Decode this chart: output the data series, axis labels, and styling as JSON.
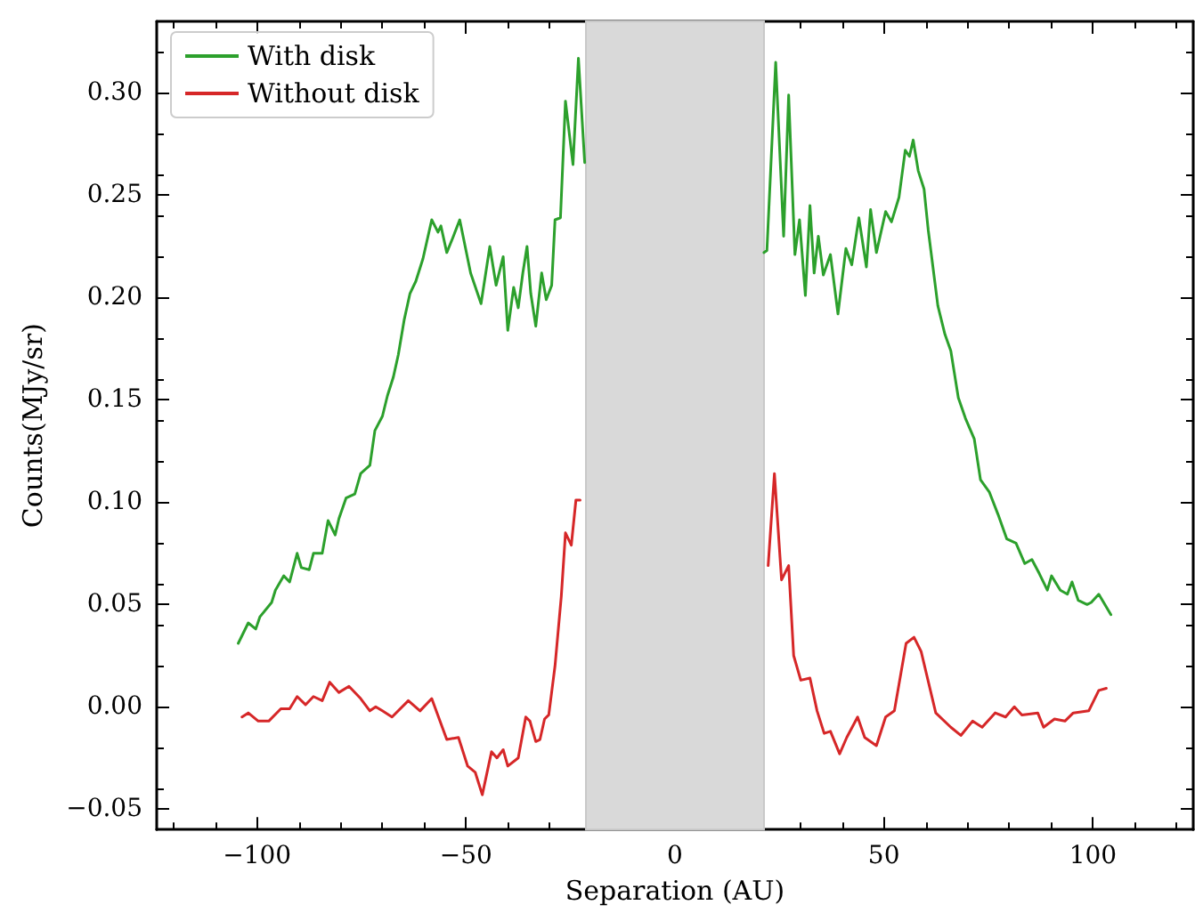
{
  "chart_data": {
    "type": "line",
    "xlabel": "Separation (AU)",
    "ylabel": "Counts(MJy/sr)",
    "xlim": [
      -124,
      124
    ],
    "ylim": [
      -0.06,
      0.335
    ],
    "xticks": [
      {
        "value": -100,
        "label": "−100"
      },
      {
        "value": -50,
        "label": "−50"
      },
      0,
      50,
      100
    ],
    "yticks": [
      {
        "value": -0.05,
        "label": "−0.05"
      },
      {
        "value": 0,
        "label": "0.00"
      },
      {
        "value": 0.05,
        "label": "0.05"
      },
      {
        "value": 0.1,
        "label": "0.10"
      },
      {
        "value": 0.15,
        "label": "0.15"
      },
      {
        "value": 0.2,
        "label": "0.20"
      },
      {
        "value": 0.25,
        "label": "0.25"
      },
      {
        "value": 0.3,
        "label": "0.30"
      }
    ],
    "grid": false,
    "legend": "top left",
    "marker": "none",
    "line_style": "solid",
    "bands": [
      {
        "axis": "x",
        "from": -21.3,
        "to": 21.3,
        "color": "#d9d9d9"
      }
    ],
    "series": [
      {
        "name": "With disk",
        "color": "#2ca02c",
        "x": [
          -104.5,
          -102.1,
          -100.3,
          -99.3,
          -96.5,
          -95.6,
          -93.6,
          -92.2,
          -90.4,
          -89.4,
          -87.5,
          -86.5,
          -84.4,
          -83,
          -81.3,
          -80.4,
          -78.7,
          -76.6,
          -75.2,
          -73,
          -71.8,
          -70,
          -68.8,
          -67.4,
          -66.2,
          -64.8,
          -63.4,
          -62,
          -60.3,
          -58.2,
          -56.7,
          -56,
          -54.6,
          -53.2,
          -51.5,
          -48.9,
          -46.4,
          -44.3,
          -42.8,
          -41.1,
          -40,
          -38.6,
          -37.5,
          -36.4,
          -35.4,
          -34.5,
          -33.3,
          -31.9,
          -30.8,
          -29.5,
          -28.7,
          -27.4,
          -26.2,
          -24.4,
          -23.1,
          -21.6,
          0,
          21.3,
          22,
          24.1,
          26,
          27.2,
          28.7,
          29.8,
          31.2,
          32.3,
          33.3,
          34.3,
          35.5,
          37.2,
          39,
          40.9,
          42.3,
          44,
          45.8,
          46.8,
          48.2,
          50.4,
          51.8,
          53.6,
          55.1,
          56.1,
          57,
          58.2,
          59.6,
          60.6,
          62.9,
          64.6,
          66,
          67.8,
          69.5,
          71.6,
          73.1,
          75.2,
          77.3,
          79.4,
          81.6,
          83.7,
          85.4,
          87.2,
          89.1,
          90.1,
          92.2,
          93.9,
          95,
          96.5,
          98.6,
          99.6,
          101.4,
          104.3
        ],
        "values": [
          0.031,
          0.041,
          0.038,
          0.044,
          0.051,
          0.057,
          0.064,
          0.061,
          0.075,
          0.068,
          0.067,
          0.075,
          0.075,
          0.091,
          0.084,
          0.092,
          0.102,
          0.104,
          0.114,
          0.118,
          0.135,
          0.142,
          0.152,
          0.161,
          0.172,
          0.189,
          0.202,
          0.208,
          0.219,
          0.238,
          0.232,
          0.235,
          0.222,
          0.229,
          0.238,
          0.212,
          0.197,
          0.225,
          0.206,
          0.22,
          0.184,
          0.205,
          0.195,
          0.212,
          0.225,
          0.202,
          0.186,
          0.212,
          0.199,
          0.206,
          0.238,
          0.239,
          0.296,
          0.265,
          0.317,
          0.266,
          null,
          0.222,
          0.223,
          0.315,
          0.23,
          0.299,
          0.221,
          0.238,
          0.201,
          0.245,
          0.212,
          0.23,
          0.211,
          0.221,
          0.192,
          0.224,
          0.216,
          0.239,
          0.215,
          0.243,
          0.222,
          0.242,
          0.237,
          0.249,
          0.272,
          0.269,
          0.277,
          0.262,
          0.253,
          0.233,
          0.196,
          0.182,
          0.174,
          0.151,
          0.141,
          0.131,
          0.111,
          0.105,
          0.094,
          0.082,
          0.08,
          0.07,
          0.072,
          0.065,
          0.057,
          0.064,
          0.057,
          0.055,
          0.061,
          0.052,
          0.05,
          0.051,
          0.055,
          0.045
        ]
      },
      {
        "name": "Without disk",
        "color": "#d62728",
        "x": [
          -103.6,
          -102.1,
          -99.7,
          -97.2,
          -94.3,
          -92.2,
          -90.4,
          -88.4,
          -86.5,
          -84.4,
          -82.6,
          -80.4,
          -78,
          -75.2,
          -73,
          -71.6,
          -70,
          -67.7,
          -63.8,
          -61,
          -58.2,
          -54.6,
          -51.8,
          -49.6,
          -47.8,
          -46.1,
          -43.9,
          -42.6,
          -41.1,
          -40,
          -37.5,
          -35.7,
          -34.7,
          -33.3,
          -32.3,
          -31.2,
          -30.2,
          -28.7,
          -27.2,
          -26.2,
          -24.8,
          -23.7,
          -22.7,
          0,
          22.3,
          23.8,
          25.5,
          27.2,
          28.4,
          30.1,
          32.3,
          34,
          35.7,
          37.2,
          39.4,
          41.1,
          43.7,
          45.4,
          48.2,
          50.4,
          52.5,
          55.3,
          57.2,
          58.9,
          62.4,
          66,
          68.4,
          71.2,
          73.5,
          76.6,
          79.1,
          81.2,
          83,
          86.8,
          88.2,
          90.8,
          93.3,
          95.3,
          99,
          101.4,
          103.2
        ],
        "values": [
          -0.005,
          -0.003,
          -0.007,
          -0.007,
          -0.001,
          -0.001,
          0.005,
          0.001,
          0.005,
          0.003,
          0.012,
          0.007,
          0.01,
          0.004,
          -0.002,
          0.0,
          -0.002,
          -0.005,
          0.003,
          -0.002,
          0.004,
          -0.016,
          -0.015,
          -0.029,
          -0.032,
          -0.043,
          -0.022,
          -0.025,
          -0.021,
          -0.029,
          -0.025,
          -0.005,
          -0.007,
          -0.017,
          -0.016,
          -0.006,
          -0.004,
          0.02,
          0.054,
          0.085,
          0.079,
          0.101,
          0.101,
          null,
          0.069,
          0.114,
          0.062,
          0.069,
          0.025,
          0.013,
          0.014,
          -0.002,
          -0.013,
          -0.012,
          -0.023,
          -0.015,
          -0.005,
          -0.015,
          -0.019,
          -0.005,
          -0.002,
          0.031,
          0.034,
          0.027,
          -0.003,
          -0.01,
          -0.014,
          -0.007,
          -0.01,
          -0.003,
          -0.005,
          0.0,
          -0.004,
          -0.003,
          -0.01,
          -0.006,
          -0.007,
          -0.003,
          -0.002,
          0.008,
          0.009
        ]
      }
    ]
  }
}
